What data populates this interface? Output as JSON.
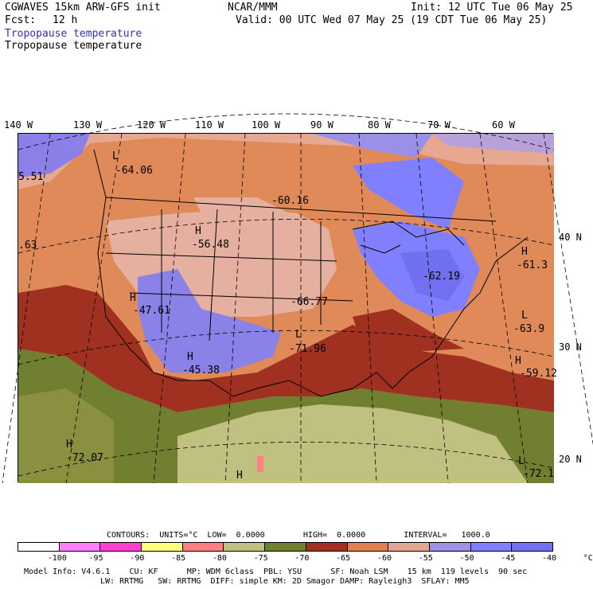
{
  "header": {
    "title_left": "CGWAVES 15km ARW-GFS init",
    "fcst_label": "Fcst:",
    "fcst_value": "12 h",
    "subtitle_1": "Tropopause temperature",
    "subtitle_2": "Tropopause temperature",
    "org": "NCAR/MMM",
    "init": "Init: 12 UTC Tue 06 May 25",
    "valid": "Valid: 00 UTC Wed 07 May 25 (19 CDT Tue 06 May 25)"
  },
  "lon_labels": [
    "140 W",
    "130 W",
    "120 W",
    "110 W",
    "100 W",
    "90 W",
    "80 W",
    "70 W",
    "60 W"
  ],
  "lat_labels": [
    "40 N",
    "30 N",
    "20 N"
  ],
  "map_labels": {
    "l1": "L",
    "v1": "-64.06",
    "v2": "-60.16",
    "h1": "H",
    "v3": "-56.48",
    "h2": "H",
    "v4": "-47.61",
    "v5": "-66.77",
    "l2": "L",
    "v6": "-71.96",
    "h3": "H",
    "v7": "-45.38",
    "v8": "-62.19",
    "h4": "H",
    "v9": "-61.3",
    "l3": "L",
    "v10": "-63.9",
    "h5": "H",
    "v11": "-59.12",
    "h6": "H",
    "v12": "-72.07",
    "h7": "H",
    "l4": "L",
    "v13": "-72.1",
    "edge1": "5.51",
    "edge2": ".63"
  },
  "contours": {
    "text": "CONTOURS:  UNITS=°C  LOW=  0.0000        HIGH=  0.0000        INTERVAL=   1000.0"
  },
  "colorbar": {
    "colors": [
      "#ffffff",
      "#ff80ff",
      "#ff40d0",
      "#ffff80",
      "#ff8080",
      "#c0c080",
      "#708030",
      "#a03020",
      "#e08050",
      "#e0a890",
      "#a090e0",
      "#8080ff",
      "#7070f0"
    ],
    "ticks": [
      "-100",
      "-95",
      "-90",
      "-85",
      "-80",
      "-75",
      "-70",
      "-65",
      "-60",
      "-55",
      "-50",
      "-45",
      "-40",
      "°C"
    ]
  },
  "footer": {
    "line1": "Model Info: V4.6.1    CU: KF      MP: WDM 6class  PBL: YSU      SF: Noah LSM    15 km  119 levels  90 sec",
    "line2": "LW: RRTMG   SW: RRTMG  DIFF: simple KM: 2D Smagor DAMP: Rayleigh3  SFLAY: MM5"
  }
}
